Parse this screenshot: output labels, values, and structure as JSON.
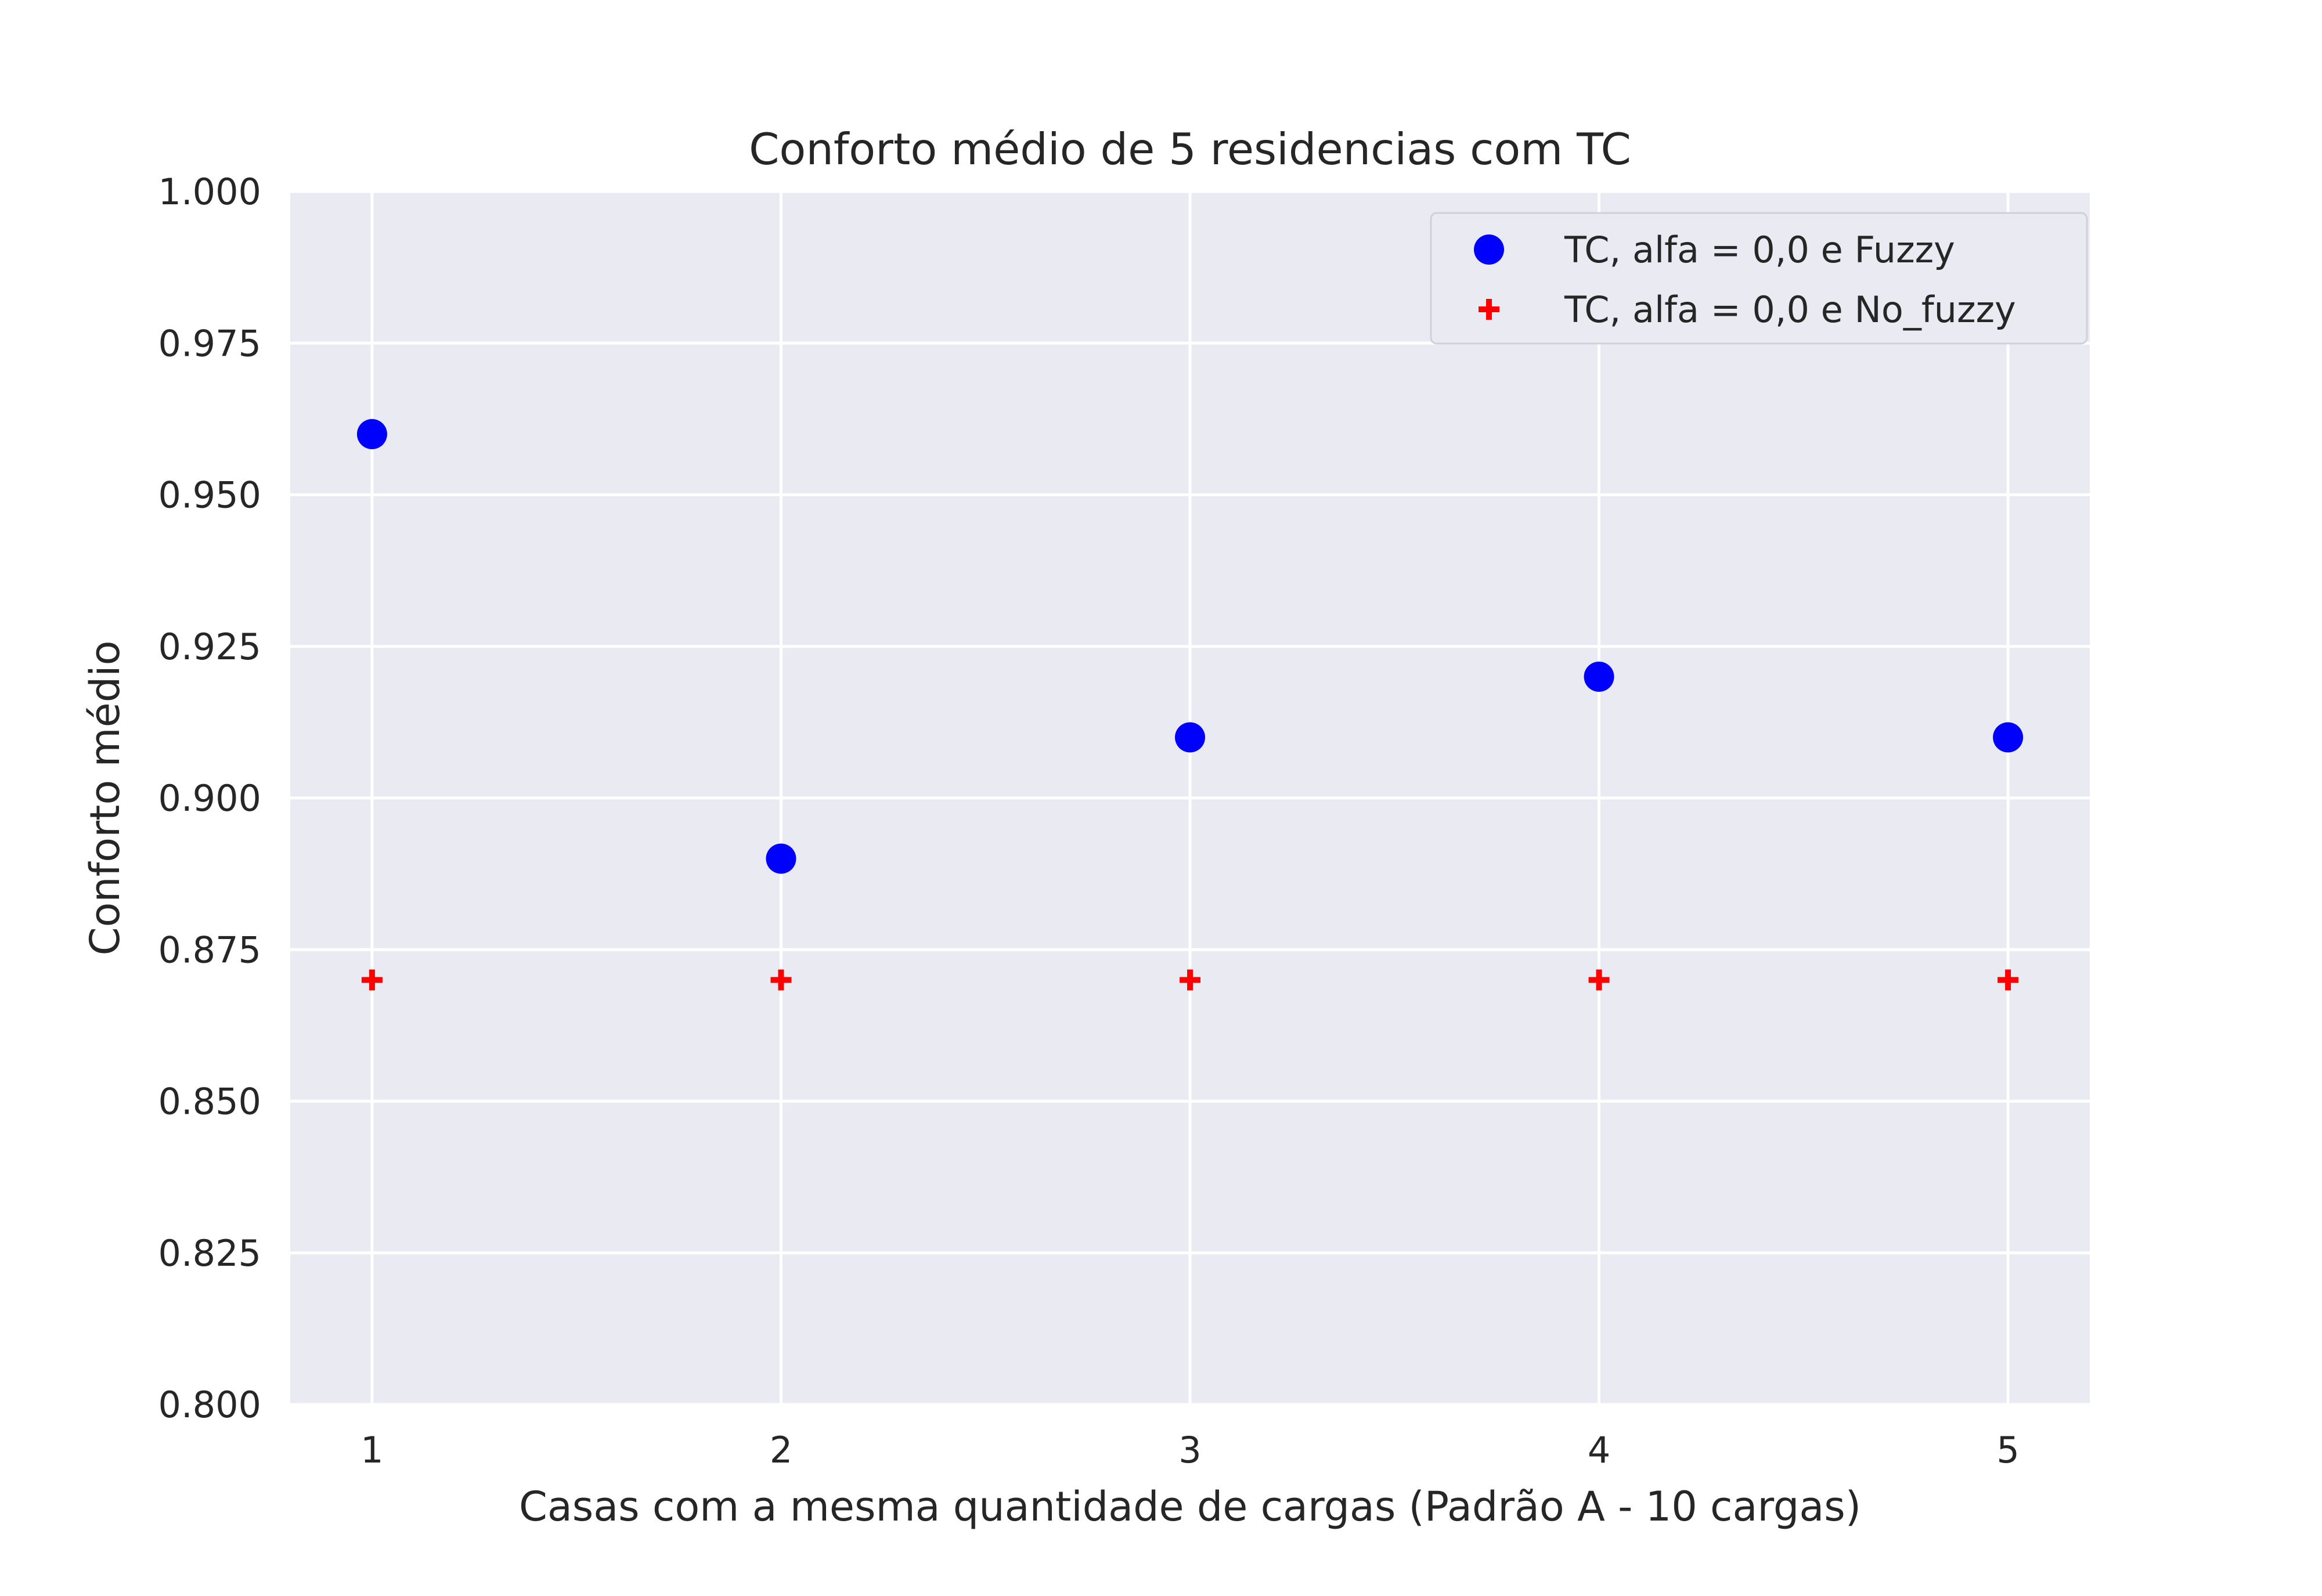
{
  "chart_data": {
    "type": "scatter",
    "title": "Conforto médio de 5 residencias com TC",
    "xlabel": "Casas com a mesma quantidade de cargas (Padrão A - 10 cargas)",
    "ylabel": "Conforto médio",
    "xlim": [
      0.8,
      5.2
    ],
    "ylim": [
      0.8,
      1.0
    ],
    "x_ticks": [
      1,
      2,
      3,
      4,
      5
    ],
    "x_tick_labels": [
      "1",
      "2",
      "3",
      "4",
      "5"
    ],
    "y_ticks": [
      0.8,
      0.825,
      0.85,
      0.875,
      0.9,
      0.925,
      0.95,
      0.975,
      1.0
    ],
    "y_tick_labels": [
      "0.800",
      "0.825",
      "0.850",
      "0.875",
      "0.900",
      "0.925",
      "0.950",
      "0.975",
      "1.000"
    ],
    "grid": true,
    "legend_position": "top-right",
    "series": [
      {
        "name": "TC, alfa = 0,0 e Fuzzy",
        "marker": "circle",
        "color": "#0000ff",
        "x": [
          1,
          2,
          3,
          4,
          5
        ],
        "y": [
          0.96,
          0.89,
          0.91,
          0.92,
          0.91
        ]
      },
      {
        "name": "TC, alfa = 0,0 e No_fuzzy",
        "marker": "plus",
        "color": "#ff0000",
        "x": [
          1,
          2,
          3,
          4,
          5
        ],
        "y": [
          0.87,
          0.87,
          0.87,
          0.87,
          0.87
        ]
      }
    ],
    "colors": {
      "plot_background": "#eaeaf2",
      "grid": "#ffffff",
      "text": "#262626"
    }
  }
}
